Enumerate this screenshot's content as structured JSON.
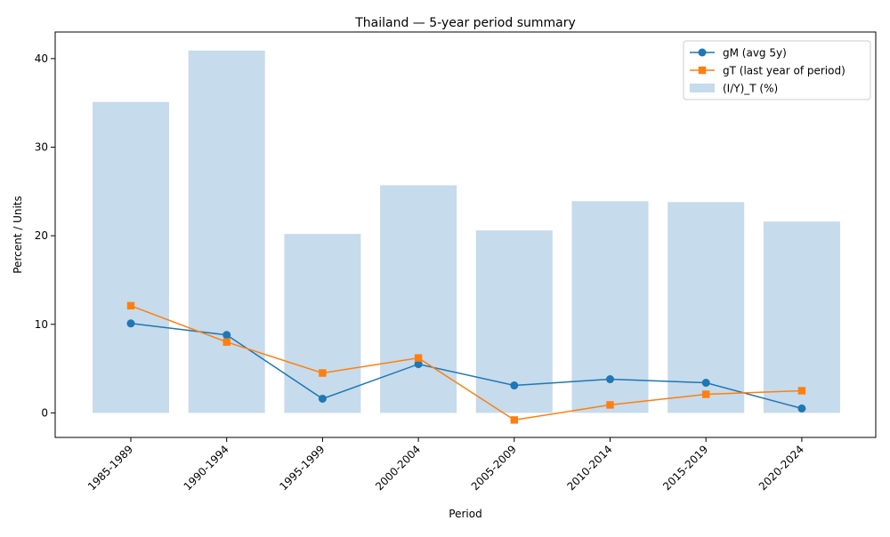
{
  "chart_data": {
    "type": "bar",
    "title": "Thailand — 5-year period summary",
    "xlabel": "Period",
    "ylabel": "Percent / Units",
    "categories": [
      "1985-1989",
      "1990-1994",
      "1995-1999",
      "2000-2004",
      "2005-2009",
      "2010-2014",
      "2015-2019",
      "2020-2024"
    ],
    "ylim": [
      -2.77,
      43.0
    ],
    "yticks": [
      0,
      10,
      20,
      30,
      40
    ],
    "grid": false,
    "legend_position": "top-right",
    "bar_series": {
      "name": "(I/Y)_T (%)",
      "color": "#c6dbec",
      "values": [
        35.1,
        40.9,
        20.2,
        25.7,
        20.6,
        23.9,
        23.8,
        21.6
      ]
    },
    "line_series": [
      {
        "name": "gM (avg 5y)",
        "color": "#1f77b4",
        "marker": "circle",
        "values": [
          10.1,
          8.8,
          1.6,
          5.5,
          3.1,
          3.8,
          3.4,
          0.5
        ]
      },
      {
        "name": "gT (last year of period)",
        "color": "#ff7f0e",
        "marker": "square",
        "values": [
          12.1,
          8.0,
          4.5,
          6.2,
          -0.8,
          0.9,
          2.1,
          2.5
        ]
      }
    ]
  }
}
